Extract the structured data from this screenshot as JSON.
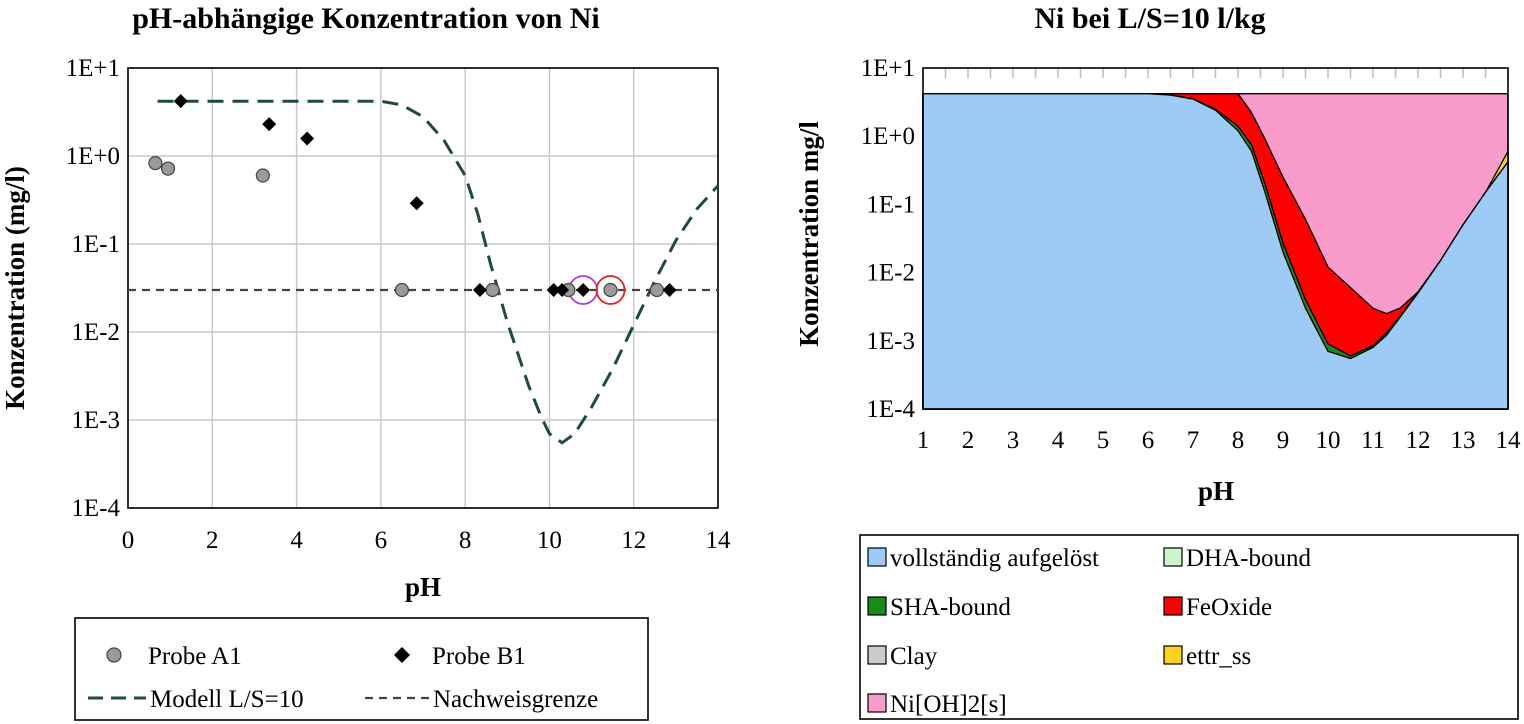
{
  "chart_data": [
    {
      "type": "scatter",
      "title": "pH-abhängige Konzentration von Ni",
      "xlabel": "pH",
      "ylabel": "Konzentration (mg/l)",
      "xlim": [
        0,
        14
      ],
      "ylim": [
        0.0001,
        10
      ],
      "y_scale": "log",
      "x_ticks": [
        "0",
        "2",
        "4",
        "6",
        "8",
        "10",
        "12",
        "14"
      ],
      "y_ticks": [
        "1E-4",
        "1E-3",
        "1E-2",
        "1E-1",
        "1E+0",
        "1E+1"
      ],
      "grid": true,
      "legend_position": "bottom",
      "series": [
        {
          "name": "Probe A1",
          "kind": "marker-circle",
          "color": "#9a9a9a",
          "points": [
            [
              0.65,
              0.83
            ],
            [
              0.95,
              0.72
            ],
            [
              3.2,
              0.6
            ],
            [
              6.5,
              0.03
            ],
            [
              8.65,
              0.03
            ],
            [
              10.45,
              0.03
            ],
            [
              11.45,
              0.03
            ],
            [
              12.55,
              0.03
            ]
          ]
        },
        {
          "name": "Probe B1",
          "kind": "marker-diamond",
          "color": "#000000",
          "points": [
            [
              1.25,
              4.2
            ],
            [
              3.35,
              2.3
            ],
            [
              4.25,
              1.58
            ],
            [
              6.85,
              0.29
            ],
            [
              8.35,
              0.03
            ],
            [
              10.1,
              0.03
            ],
            [
              10.3,
              0.03
            ],
            [
              10.8,
              0.03
            ],
            [
              12.85,
              0.03
            ]
          ]
        },
        {
          "name": "Modell L/S=10",
          "kind": "dashed-line",
          "color": "#1e4a44",
          "points": [
            [
              0.7,
              4.2
            ],
            [
              2,
              4.2
            ],
            [
              4,
              4.2
            ],
            [
              5.5,
              4.2
            ],
            [
              6,
              4.2
            ],
            [
              6.5,
              3.8
            ],
            [
              7,
              2.8
            ],
            [
              7.5,
              1.5
            ],
            [
              8,
              0.6
            ],
            [
              8.3,
              0.22
            ],
            [
              8.6,
              0.06
            ],
            [
              9,
              0.013
            ],
            [
              9.5,
              0.0025
            ],
            [
              9.8,
              0.0011
            ],
            [
              10,
              0.0007
            ],
            [
              10.3,
              0.00055
            ],
            [
              10.6,
              0.0007
            ],
            [
              11,
              0.0014
            ],
            [
              11.5,
              0.0038
            ],
            [
              12,
              0.012
            ],
            [
              12.5,
              0.038
            ],
            [
              13,
              0.11
            ],
            [
              13.5,
              0.25
            ],
            [
              14,
              0.46
            ]
          ]
        },
        {
          "name": "Nachweisgrenze",
          "kind": "dashed-line",
          "color": "#444444",
          "points": [
            [
              0,
              0.03
            ],
            [
              14,
              0.03
            ]
          ]
        }
      ],
      "highlight_circles": [
        {
          "x": 10.8,
          "y": 0.03,
          "color": "#a040e0"
        },
        {
          "x": 11.45,
          "y": 0.03,
          "color": "#e82020"
        }
      ]
    },
    {
      "type": "area",
      "stacked": true,
      "title": "Ni bei L/S=10 l/kg",
      "xlabel": "pH",
      "ylabel": "Konzentration mg/l",
      "xlim": [
        1,
        14
      ],
      "ylim": [
        0.0001,
        10
      ],
      "y_scale": "log",
      "x_ticks": [
        "1",
        "2",
        "3",
        "4",
        "5",
        "6",
        "7",
        "8",
        "9",
        "10",
        "11",
        "12",
        "13",
        "14"
      ],
      "y_ticks": [
        "1E-4",
        "1E-3",
        "1E-2",
        "1E-1",
        "1E+0",
        "1E+1"
      ],
      "grid": false,
      "legend_position": "bottom",
      "x": [
        1,
        6,
        6.5,
        7,
        7.5,
        8,
        8.3,
        8.6,
        9,
        9.5,
        10,
        10.5,
        11,
        11.3,
        11.6,
        12,
        12.5,
        13,
        13.5,
        14
      ],
      "series": [
        {
          "name": "vollständig aufgelöst",
          "color": "#9dcbf6",
          "values": [
            4.2,
            4.2,
            4.0,
            3.5,
            2.4,
            1.2,
            0.6,
            0.15,
            0.02,
            0.003,
            0.0007,
            0.00055,
            0.0008,
            0.0012,
            0.0022,
            0.005,
            0.015,
            0.05,
            0.15,
            0.42
          ]
        },
        {
          "name": "DHA-bound",
          "color": "#ccf5cc",
          "values": [
            4.2,
            4.2,
            4.0,
            3.5,
            2.4,
            1.2,
            0.6,
            0.15,
            0.02,
            0.003,
            0.0007,
            0.00055,
            0.0008,
            0.0012,
            0.0022,
            0.005,
            0.015,
            0.05,
            0.15,
            0.42
          ]
        },
        {
          "name": "SHA-bound",
          "color": "#1a8a1a",
          "values": [
            4.2,
            4.2,
            4.02,
            3.55,
            2.5,
            1.4,
            0.75,
            0.2,
            0.027,
            0.004,
            0.0009,
            0.0006,
            0.00085,
            0.0013,
            0.0023,
            0.0051,
            0.015,
            0.05,
            0.15,
            0.42
          ]
        },
        {
          "name": "FeOxide",
          "color": "#ff0000",
          "values": [
            4.2,
            4.2,
            4.2,
            4.2,
            4.2,
            4.2,
            2.2,
            0.9,
            0.25,
            0.06,
            0.012,
            0.006,
            0.003,
            0.0025,
            0.003,
            0.0052,
            0.015,
            0.05,
            0.15,
            0.42
          ]
        },
        {
          "name": "Clay",
          "color": "#cccccc",
          "values": [
            4.2,
            4.2,
            4.2,
            4.2,
            4.2,
            4.2,
            2.2,
            0.9,
            0.25,
            0.06,
            0.012,
            0.006,
            0.003,
            0.0025,
            0.003,
            0.0052,
            0.015,
            0.05,
            0.15,
            0.42
          ]
        },
        {
          "name": "ettr_ss",
          "color": "#ffd21f",
          "values": [
            4.2,
            4.2,
            4.2,
            4.2,
            4.2,
            4.2,
            2.2,
            0.9,
            0.25,
            0.06,
            0.012,
            0.006,
            0.003,
            0.0025,
            0.003,
            0.0052,
            0.015,
            0.05,
            0.15,
            0.6
          ]
        },
        {
          "name": "Ni[OH]2[s]",
          "color": "#f99ccb",
          "values": [
            4.2,
            4.2,
            4.2,
            4.2,
            4.2,
            4.2,
            4.2,
            4.2,
            4.2,
            4.2,
            4.2,
            4.2,
            4.2,
            4.2,
            4.2,
            4.2,
            4.2,
            4.2,
            4.2,
            4.2
          ]
        }
      ]
    }
  ]
}
